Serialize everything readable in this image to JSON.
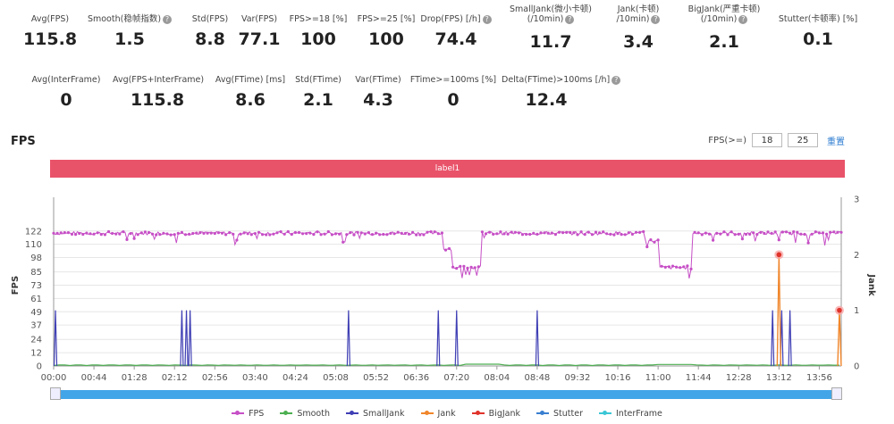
{
  "metrics_row1": [
    {
      "label": "Avg(FPS)",
      "value": "115.8",
      "help": false
    },
    {
      "label": "Smooth(稳帧指数)",
      "value": "1.5",
      "help": true
    },
    {
      "label": "Std(FPS)",
      "value": "8.8",
      "help": false
    },
    {
      "label": "Var(FPS)",
      "value": "77.1",
      "help": false
    },
    {
      "label": "FPS>=18 [%]",
      "value": "100",
      "help": false
    },
    {
      "label": "FPS>=25 [%]",
      "value": "100",
      "help": false
    },
    {
      "label": "Drop(FPS) [/h]",
      "value": "74.4",
      "help": true
    },
    {
      "label": "SmallJank(微小卡顿)\n(/10min)",
      "value": "11.7",
      "help": true
    },
    {
      "label": "Jank(卡顿)\n/10min)",
      "value": "3.4",
      "help": true
    },
    {
      "label": "BigJank(严重卡顿)\n(/10min)",
      "value": "2.1",
      "help": true
    },
    {
      "label": "Stutter(卡顿率) [%]",
      "value": "0.1",
      "help": false
    }
  ],
  "metrics_row2": [
    {
      "label": "Avg(InterFrame)",
      "value": "0",
      "help": false
    },
    {
      "label": "Avg(FPS+InterFrame)",
      "value": "115.8",
      "help": false
    },
    {
      "label": "Avg(FTime) [ms]",
      "value": "8.6",
      "help": false
    },
    {
      "label": "Std(FTime)",
      "value": "2.1",
      "help": false
    },
    {
      "label": "Var(FTime)",
      "value": "4.3",
      "help": false
    },
    {
      "label": "FTime>=100ms [%]",
      "value": "0",
      "help": false
    },
    {
      "label": "Delta(FTime)>100ms [/h]",
      "value": "12.4",
      "help": true
    }
  ],
  "section_title": "FPS",
  "fps_filter": {
    "label": "FPS(>=)",
    "v1": "18",
    "v2": "25",
    "reset": "重置"
  },
  "label_bar": "label1",
  "legend": [
    {
      "name": "FPS",
      "color": "#c64fc6"
    },
    {
      "name": "Smooth",
      "color": "#4caf50"
    },
    {
      "name": "SmallJank",
      "color": "#3f3fb5"
    },
    {
      "name": "Jank",
      "color": "#f0862b"
    },
    {
      "name": "BigJank",
      "color": "#e0332b"
    },
    {
      "name": "Stutter",
      "color": "#3a7fd0"
    },
    {
      "name": "InterFrame",
      "color": "#3ac6d6"
    }
  ],
  "chart_data": {
    "type": "line",
    "ylabel": "FPS",
    "y2label": "Jank",
    "yticks": [
      0,
      12,
      24,
      37,
      49,
      61,
      73,
      85,
      98,
      110,
      122
    ],
    "ylim": [
      0,
      146
    ],
    "y2ticks": [
      0,
      1,
      2,
      3
    ],
    "y2lim": [
      0,
      3
    ],
    "xticks": [
      "00:00",
      "00:44",
      "01:28",
      "02:12",
      "02:56",
      "03:40",
      "04:24",
      "05:08",
      "05:52",
      "06:36",
      "07:20",
      "08:04",
      "08:48",
      "09:32",
      "10:16",
      "11:00",
      "11:44",
      "12:28",
      "13:12",
      "13:56"
    ],
    "xlim_seconds": [
      0,
      860
    ],
    "fps_segments": [
      {
        "from": "00:00",
        "to": "07:05",
        "avg": 120
      },
      {
        "from": "07:05",
        "to": "07:14",
        "avg": 106
      },
      {
        "from": "07:14",
        "to": "07:47",
        "avg": 89
      },
      {
        "from": "07:47",
        "to": "10:45",
        "avg": 120
      },
      {
        "from": "10:45",
        "to": "11:00",
        "avg": 113
      },
      {
        "from": "11:00",
        "to": "11:36",
        "avg": 89
      },
      {
        "from": "11:36",
        "to": "14:20",
        "avg": 120
      }
    ],
    "smalljank_spikes": [
      "00:02",
      "02:20",
      "02:25",
      "02:29",
      "05:22",
      "07:00",
      "07:20",
      "08:48",
      "13:05",
      "13:15",
      "13:24"
    ],
    "jank_peaks": [
      {
        "t": "13:12",
        "value": 2
      },
      {
        "t": "14:18",
        "value": 1
      }
    ],
    "bigjank_markers": [
      {
        "t": "13:12",
        "value": 2
      },
      {
        "t": "14:18",
        "value": 1
      }
    ]
  }
}
